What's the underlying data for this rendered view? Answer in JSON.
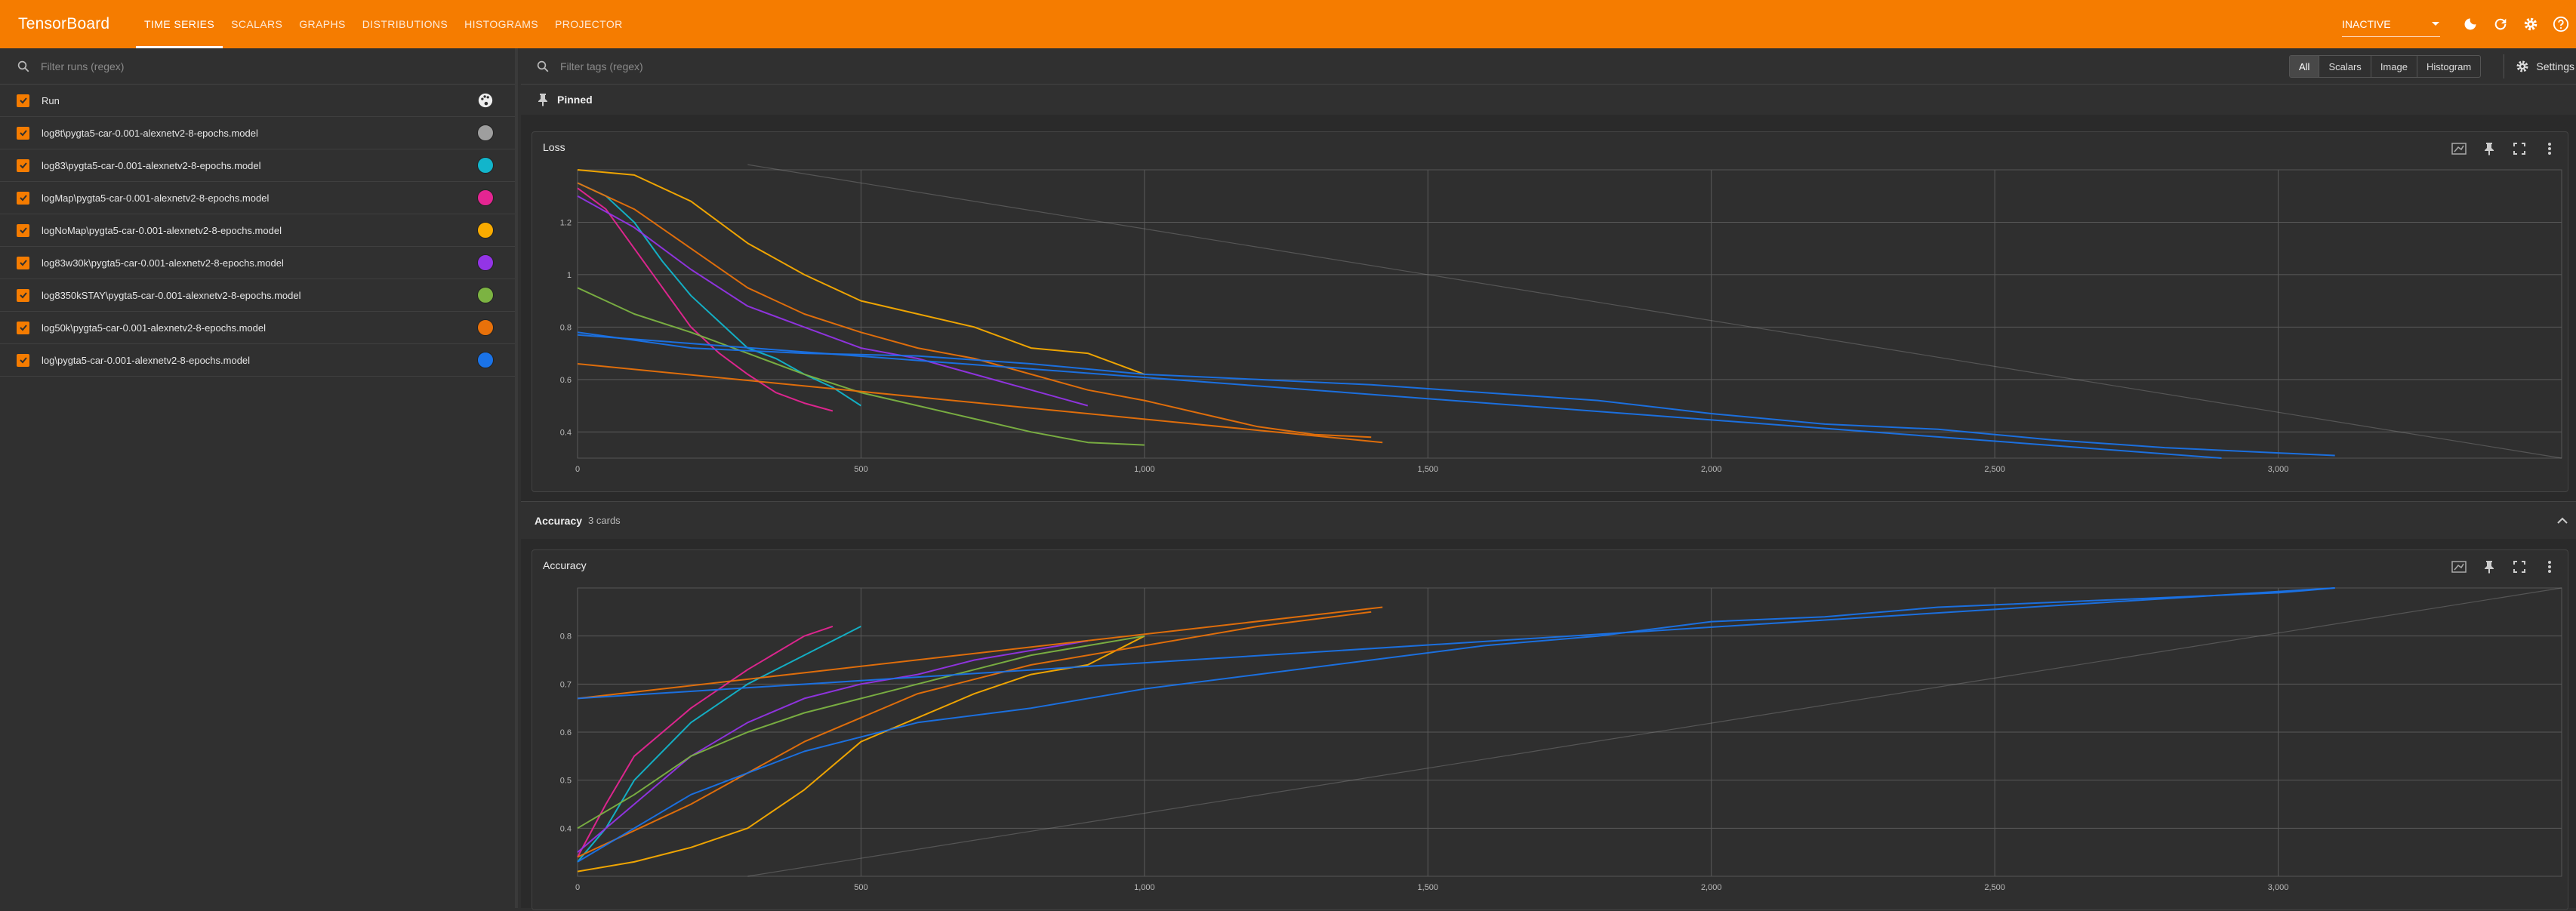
{
  "header": {
    "brand": "TensorBoard",
    "tabs": [
      {
        "label": "TIME SERIES",
        "active": true
      },
      {
        "label": "SCALARS",
        "active": false
      },
      {
        "label": "GRAPHS",
        "active": false
      },
      {
        "label": "DISTRIBUTIONS",
        "active": false
      },
      {
        "label": "HISTOGRAMS",
        "active": false
      },
      {
        "label": "PROJECTOR",
        "active": false
      }
    ],
    "status_select": "INACTIVE",
    "icons": [
      "dark-mode-icon",
      "refresh-icon",
      "settings-icon",
      "help-icon"
    ]
  },
  "sidebar": {
    "filter_placeholder": "Filter runs (regex)",
    "header_label": "Run",
    "runs": [
      {
        "label": "log8t\\pygta5-car-0.001-alexnetv2-8-epochs.model",
        "color": "#9e9e9e"
      },
      {
        "label": "log83\\pygta5-car-0.001-alexnetv2-8-epochs.model",
        "color": "#12b5cb"
      },
      {
        "label": "logMap\\pygta5-car-0.001-alexnetv2-8-epochs.model",
        "color": "#e52592"
      },
      {
        "label": "logNoMap\\pygta5-car-0.001-alexnetv2-8-epochs.model",
        "color": "#f9ab00"
      },
      {
        "label": "log83w30k\\pygta5-car-0.001-alexnetv2-8-epochs.model",
        "color": "#9334e6"
      },
      {
        "label": "log8350kSTAY\\pygta5-car-0.001-alexnetv2-8-epochs.model",
        "color": "#7cb342"
      },
      {
        "label": "log50k\\pygta5-car-0.001-alexnetv2-8-epochs.model",
        "color": "#e8710a"
      },
      {
        "label": "log\\pygta5-car-0.001-alexnetv2-8-epochs.model",
        "color": "#1a73e8"
      }
    ]
  },
  "main": {
    "tag_filter_placeholder": "Filter tags (regex)",
    "type_toggle": [
      "All",
      "Scalars",
      "Image",
      "Histogram"
    ],
    "settings_label": "Settings",
    "pinned_label": "Pinned",
    "accuracy_group": {
      "label": "Accuracy",
      "count": "3 cards"
    }
  },
  "chart_data": [
    {
      "type": "line",
      "title": "Loss",
      "xlim": [
        0,
        3500
      ],
      "ylim": [
        0.3,
        1.4
      ],
      "xticks": [
        0,
        500,
        1000,
        1500,
        2000,
        2500,
        3000
      ],
      "xtick_labels": [
        "0",
        "500",
        "1,000",
        "1,500",
        "2,000",
        "2,500",
        "3,000"
      ],
      "yticks": [
        0.4,
        0.6,
        0.8,
        1,
        1.2
      ],
      "ytick_labels": [
        "0.4",
        "0.6",
        "0.8",
        "1",
        "1.2"
      ],
      "grid": true,
      "series": [
        {
          "color": "#9e9e9e",
          "points": [
            [
              300,
              1.42
            ],
            [
              3500,
              0.3
            ]
          ]
        },
        {
          "color": "#12b5cb",
          "points": [
            [
              0,
              1.35
            ],
            [
              50,
              1.3
            ],
            [
              100,
              1.2
            ],
            [
              150,
              1.05
            ],
            [
              200,
              0.92
            ],
            [
              250,
              0.82
            ],
            [
              300,
              0.72
            ],
            [
              350,
              0.68
            ],
            [
              400,
              0.62
            ],
            [
              450,
              0.57
            ],
            [
              500,
              0.5
            ]
          ]
        },
        {
          "color": "#e52592",
          "points": [
            [
              0,
              1.33
            ],
            [
              50,
              1.25
            ],
            [
              100,
              1.1
            ],
            [
              150,
              0.95
            ],
            [
              200,
              0.8
            ],
            [
              250,
              0.7
            ],
            [
              300,
              0.62
            ],
            [
              350,
              0.55
            ],
            [
              400,
              0.51
            ],
            [
              450,
              0.48
            ]
          ]
        },
        {
          "color": "#f9ab00",
          "points": [
            [
              0,
              1.4
            ],
            [
              100,
              1.38
            ],
            [
              200,
              1.28
            ],
            [
              300,
              1.12
            ],
            [
              400,
              1.0
            ],
            [
              500,
              0.9
            ],
            [
              600,
              0.85
            ],
            [
              700,
              0.8
            ],
            [
              800,
              0.72
            ],
            [
              900,
              0.7
            ],
            [
              1000,
              0.62
            ]
          ]
        },
        {
          "color": "#9334e6",
          "points": [
            [
              0,
              1.3
            ],
            [
              100,
              1.18
            ],
            [
              200,
              1.02
            ],
            [
              300,
              0.88
            ],
            [
              400,
              0.8
            ],
            [
              500,
              0.72
            ],
            [
              600,
              0.68
            ],
            [
              700,
              0.62
            ],
            [
              800,
              0.56
            ],
            [
              900,
              0.5
            ]
          ]
        },
        {
          "color": "#7cb342",
          "points": [
            [
              0,
              0.95
            ],
            [
              50,
              0.9
            ],
            [
              100,
              0.85
            ],
            [
              200,
              0.78
            ],
            [
              300,
              0.7
            ],
            [
              400,
              0.62
            ],
            [
              500,
              0.55
            ],
            [
              600,
              0.5
            ],
            [
              700,
              0.45
            ],
            [
              800,
              0.4
            ],
            [
              900,
              0.36
            ],
            [
              1000,
              0.35
            ]
          ]
        },
        {
          "color": "#e8710a",
          "points": [
            [
              0,
              1.35
            ],
            [
              100,
              1.25
            ],
            [
              200,
              1.1
            ],
            [
              300,
              0.95
            ],
            [
              400,
              0.85
            ],
            [
              500,
              0.78
            ],
            [
              600,
              0.72
            ],
            [
              700,
              0.68
            ],
            [
              800,
              0.62
            ],
            [
              900,
              0.56
            ],
            [
              1000,
              0.52
            ],
            [
              1100,
              0.47
            ],
            [
              1200,
              0.42
            ],
            [
              1300,
              0.39
            ],
            [
              1400,
              0.38
            ]
          ]
        },
        {
          "color": "#e8710a",
          "points": [
            [
              0,
              0.66
            ],
            [
              1420,
              0.36
            ]
          ]
        },
        {
          "color": "#1a73e8",
          "points": [
            [
              0,
              0.78
            ],
            [
              200,
              0.72
            ],
            [
              400,
              0.7
            ],
            [
              600,
              0.69
            ],
            [
              800,
              0.66
            ],
            [
              1000,
              0.62
            ],
            [
              1200,
              0.6
            ],
            [
              1400,
              0.58
            ],
            [
              1600,
              0.55
            ],
            [
              1800,
              0.52
            ],
            [
              2000,
              0.47
            ],
            [
              2200,
              0.43
            ],
            [
              2400,
              0.41
            ],
            [
              2600,
              0.37
            ],
            [
              2800,
              0.34
            ],
            [
              3000,
              0.32
            ],
            [
              3100,
              0.31
            ]
          ]
        },
        {
          "color": "#1a73e8",
          "points": [
            [
              0,
              0.77
            ],
            [
              2900,
              0.3
            ]
          ]
        }
      ]
    },
    {
      "type": "line",
      "title": "Accuracy",
      "xlim": [
        0,
        3500
      ],
      "ylim": [
        0.3,
        0.9
      ],
      "xticks": [
        0,
        500,
        1000,
        1500,
        2000,
        2500,
        3000
      ],
      "xtick_labels": [
        "0",
        "500",
        "1,000",
        "1,500",
        "2,000",
        "2,500",
        "3,000"
      ],
      "yticks": [
        0.4,
        0.5,
        0.6,
        0.7,
        0.8
      ],
      "ytick_labels": [
        "0.4",
        "0.5",
        "0.6",
        "0.7",
        "0.8"
      ],
      "grid": true,
      "series": [
        {
          "color": "#9e9e9e",
          "points": [
            [
              300,
              0.3
            ],
            [
              3500,
              0.9
            ]
          ]
        },
        {
          "color": "#12b5cb",
          "points": [
            [
              0,
              0.33
            ],
            [
              50,
              0.4
            ],
            [
              100,
              0.5
            ],
            [
              200,
              0.62
            ],
            [
              300,
              0.7
            ],
            [
              400,
              0.76
            ],
            [
              500,
              0.82
            ]
          ]
        },
        {
          "color": "#e52592",
          "points": [
            [
              0,
              0.34
            ],
            [
              50,
              0.45
            ],
            [
              100,
              0.55
            ],
            [
              200,
              0.65
            ],
            [
              300,
              0.73
            ],
            [
              400,
              0.8
            ],
            [
              450,
              0.82
            ]
          ]
        },
        {
          "color": "#f9ab00",
          "points": [
            [
              0,
              0.31
            ],
            [
              100,
              0.33
            ],
            [
              200,
              0.36
            ],
            [
              300,
              0.4
            ],
            [
              400,
              0.48
            ],
            [
              500,
              0.58
            ],
            [
              600,
              0.63
            ],
            [
              700,
              0.68
            ],
            [
              800,
              0.72
            ],
            [
              900,
              0.74
            ],
            [
              1000,
              0.8
            ]
          ]
        },
        {
          "color": "#9334e6",
          "points": [
            [
              0,
              0.35
            ],
            [
              100,
              0.45
            ],
            [
              200,
              0.55
            ],
            [
              300,
              0.62
            ],
            [
              400,
              0.67
            ],
            [
              500,
              0.7
            ],
            [
              600,
              0.72
            ],
            [
              700,
              0.75
            ],
            [
              800,
              0.77
            ],
            [
              900,
              0.79
            ]
          ]
        },
        {
          "color": "#7cb342",
          "points": [
            [
              0,
              0.4
            ],
            [
              100,
              0.47
            ],
            [
              200,
              0.55
            ],
            [
              300,
              0.6
            ],
            [
              400,
              0.64
            ],
            [
              500,
              0.67
            ],
            [
              600,
              0.7
            ],
            [
              700,
              0.73
            ],
            [
              800,
              0.76
            ],
            [
              900,
              0.78
            ],
            [
              1000,
              0.8
            ]
          ]
        },
        {
          "color": "#e8710a",
          "points": [
            [
              0,
              0.34
            ],
            [
              200,
              0.45
            ],
            [
              400,
              0.58
            ],
            [
              600,
              0.68
            ],
            [
              800,
              0.74
            ],
            [
              1000,
              0.78
            ],
            [
              1200,
              0.82
            ],
            [
              1400,
              0.85
            ]
          ]
        },
        {
          "color": "#e8710a",
          "points": [
            [
              0,
              0.67
            ],
            [
              1420,
              0.86
            ]
          ]
        },
        {
          "color": "#1a73e8",
          "points": [
            [
              0,
              0.33
            ],
            [
              200,
              0.47
            ],
            [
              400,
              0.56
            ],
            [
              600,
              0.62
            ],
            [
              800,
              0.65
            ],
            [
              1000,
              0.69
            ],
            [
              1200,
              0.72
            ],
            [
              1400,
              0.75
            ],
            [
              1600,
              0.78
            ],
            [
              1800,
              0.8
            ],
            [
              2000,
              0.83
            ],
            [
              2200,
              0.84
            ],
            [
              2400,
              0.86
            ],
            [
              2600,
              0.87
            ],
            [
              2800,
              0.88
            ],
            [
              3000,
              0.89
            ],
            [
              3100,
              0.9
            ]
          ]
        },
        {
          "color": "#1a73e8",
          "points": [
            [
              0,
              0.67
            ],
            [
              3100,
              0.9
            ]
          ]
        }
      ]
    }
  ]
}
